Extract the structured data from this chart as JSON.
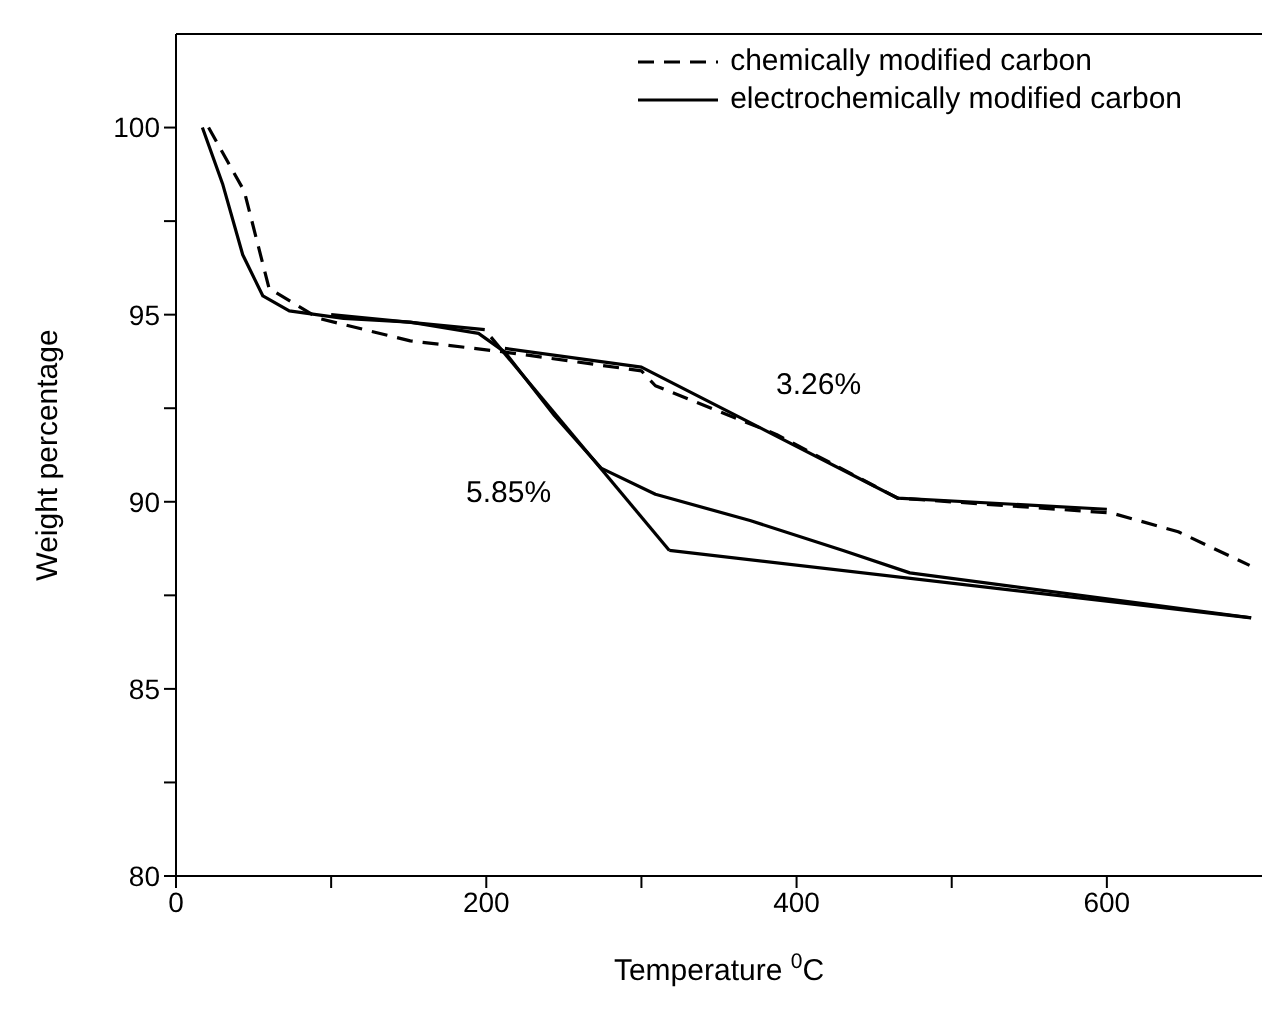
{
  "chart_data": {
    "type": "line",
    "xlabel": "Temperature $^{0}$C",
    "ylabel": "Weight percentage",
    "xlim": [
      0,
      700
    ],
    "xticks": [
      0,
      {
        "value": 100,
        "label": null
      },
      200,
      {
        "value": 300,
        "label": null
      },
      400,
      {
        "value": 500,
        "label": null
      },
      600
    ],
    "ylim": [
      80,
      102.5
    ],
    "yticks": [
      80,
      {
        "value": 82.5,
        "label": null
      },
      85,
      {
        "value": 87.5,
        "label": null
      },
      90,
      {
        "value": 92.5,
        "label": null
      },
      95,
      {
        "value": 97.5,
        "label": null
      },
      100
    ],
    "grid": false,
    "legend": "top right",
    "marker": "none",
    "series": [
      {
        "name": "chemically modified carbon",
        "color": "#000000",
        "line_style": "dashed",
        "x": [
          21,
          44,
          60,
          92,
          151,
          212,
          300,
          309,
          387,
          465,
          603,
          646,
          692
        ],
        "values": [
          100,
          98.3,
          95.7,
          94.9,
          94.3,
          94.0,
          93.5,
          93.1,
          91.8,
          90.1,
          89.7,
          89.2,
          88.3
        ]
      },
      {
        "name": "electrochemically modified carbon",
        "color": "#000000",
        "line_style": "solid",
        "x": [
          17,
          30,
          43,
          56,
          73,
          108,
          151,
          195,
          212,
          244,
          274,
          309,
          370,
          430,
          473,
          693
        ],
        "values": [
          100,
          98.5,
          96.6,
          95.5,
          95.1,
          94.9,
          94.8,
          94.5,
          94.0,
          92.3,
          90.9,
          90.2,
          89.5,
          88.7,
          88.1,
          86.9
        ]
      },
      {
        "color": "#000000",
        "line_style": "solid",
        "x": [
          100,
          199
        ],
        "values": [
          95,
          94.6
        ]
      },
      {
        "color": "#000000",
        "line_style": "solid",
        "x": [
          203,
          318
        ],
        "values": [
          94.4,
          88.7
        ]
      },
      {
        "color": "#000000",
        "line_style": "solid",
        "x": [
          318,
          693
        ],
        "values": [
          88.7,
          86.9
        ]
      },
      {
        "color": "#000000",
        "line_style": "solid",
        "x": [
          212,
          300,
          465,
          600
        ],
        "values": [
          94.1,
          93.6,
          90.1,
          89.8
        ]
      }
    ],
    "annotations": [
      "3.26%",
      "5.85%"
    ]
  }
}
